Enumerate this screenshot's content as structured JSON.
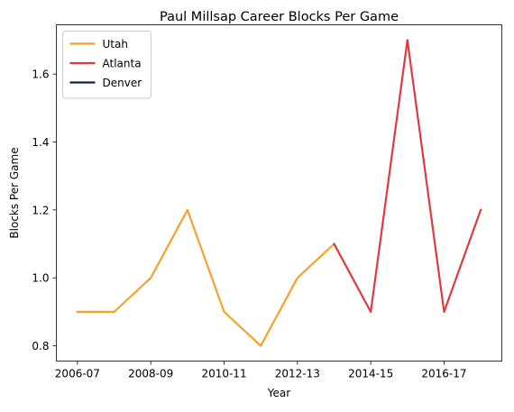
{
  "chart_data": {
    "type": "line",
    "title": "Paul Millsap Career Blocks Per Game",
    "xlabel": "Year",
    "ylabel": "Blocks Per Game",
    "x_tick_labels": [
      "2006-07",
      "2008-09",
      "2010-11",
      "2012-13",
      "2014-15",
      "2016-17"
    ],
    "y_tick_labels": [
      "0.8",
      "1.0",
      "1.2",
      "1.4",
      "1.6"
    ],
    "seasons": [
      "2006-07",
      "2007-08",
      "2008-09",
      "2009-10",
      "2010-11",
      "2011-12",
      "2012-13",
      "2013-14",
      "2014-15",
      "2015-16",
      "2016-17",
      "2017-18"
    ],
    "ylim": [
      0.755,
      1.745
    ],
    "grid": false,
    "legend_position": "top-left",
    "series": [
      {
        "name": "Utah",
        "color": "#f5a12a",
        "points": [
          {
            "season": "2006-07",
            "value": 0.9
          },
          {
            "season": "2007-08",
            "value": 0.9
          },
          {
            "season": "2008-09",
            "value": 1.0
          },
          {
            "season": "2009-10",
            "value": 1.2
          },
          {
            "season": "2010-11",
            "value": 0.9
          },
          {
            "season": "2011-12",
            "value": 0.8
          },
          {
            "season": "2012-13",
            "value": 1.0
          },
          {
            "season": "2013-14",
            "value": 1.1
          }
        ]
      },
      {
        "name": "Atlanta",
        "color": "#e03a3e",
        "points": [
          {
            "season": "2013-14",
            "value": 1.1
          },
          {
            "season": "2014-15",
            "value": 0.9
          },
          {
            "season": "2015-16",
            "value": 1.7
          },
          {
            "season": "2016-17",
            "value": 0.9
          },
          {
            "season": "2017-18",
            "value": 1.2
          }
        ]
      },
      {
        "name": "Denver",
        "color": "#0e2240",
        "points": []
      }
    ]
  }
}
